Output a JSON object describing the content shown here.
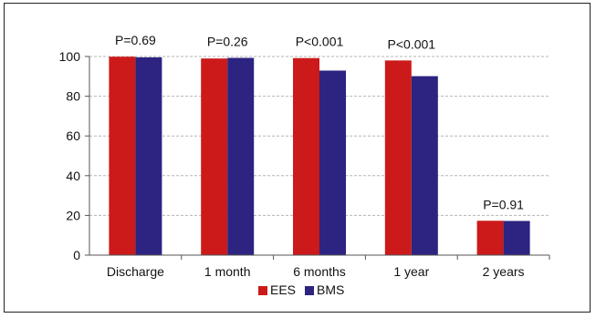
{
  "chart_data": {
    "type": "bar",
    "categories": [
      "Discharge",
      "1 month",
      "6 months",
      "1 year",
      "2 years"
    ],
    "series": [
      {
        "name": "EES",
        "color": "#cc1a1a",
        "values": [
          99.9,
          99.0,
          99.2,
          98.0,
          17.3
        ]
      },
      {
        "name": "BMS",
        "color": "#2c2480",
        "values": [
          99.6,
          99.3,
          92.9,
          90.1,
          17.2
        ]
      }
    ],
    "annotations": [
      "P=0.69",
      "P=0.26",
      "P<0.001",
      "P<0.001",
      "P=0.91"
    ],
    "ylim": [
      0,
      100
    ],
    "yticks": [
      "0",
      "20",
      "40",
      "60",
      "80",
      "100"
    ],
    "grid": true,
    "legend_position": "bottom-center"
  }
}
